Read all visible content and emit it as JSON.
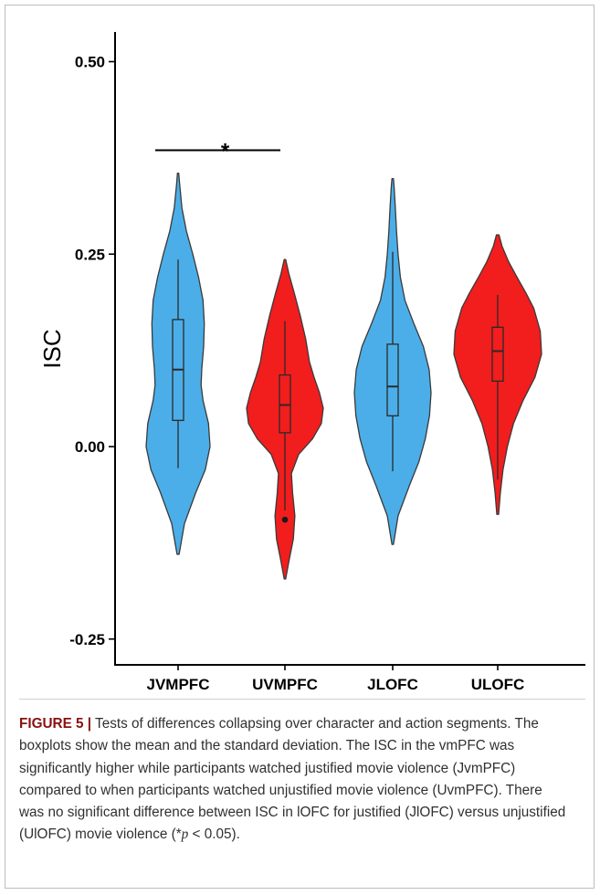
{
  "chart_data": {
    "type": "violin",
    "xlabel": "",
    "ylabel": "ISC",
    "ylim": [
      -0.28,
      0.53
    ],
    "yticks": [
      -0.25,
      0.0,
      0.25,
      0.5
    ],
    "ytick_labels": [
      "-0.25",
      "0.00",
      "0.25",
      "0.50"
    ],
    "categories": [
      "JVMPFC",
      "UVMPFC",
      "JLOFC",
      "ULOFC"
    ],
    "colors": [
      "#4baee8",
      "#f21d1d",
      "#4baee8",
      "#f21d1d"
    ],
    "grid": false,
    "groups": [
      {
        "category": "JVMPFC",
        "min": -0.14,
        "max": 0.355,
        "whisker_low": -0.028,
        "q1": 0.034,
        "median": 0.1,
        "q3": 0.165,
        "whisker_high": 0.243,
        "outliers": [],
        "density": [
          [
            -0.14,
            0.03
          ],
          [
            -0.1,
            0.2
          ],
          [
            -0.06,
            0.55
          ],
          [
            -0.03,
            0.85
          ],
          [
            0.0,
            1.0
          ],
          [
            0.03,
            0.95
          ],
          [
            0.06,
            0.78
          ],
          [
            0.08,
            0.72
          ],
          [
            0.1,
            0.74
          ],
          [
            0.13,
            0.8
          ],
          [
            0.16,
            0.82
          ],
          [
            0.19,
            0.78
          ],
          [
            0.22,
            0.64
          ],
          [
            0.25,
            0.46
          ],
          [
            0.28,
            0.26
          ],
          [
            0.31,
            0.12
          ],
          [
            0.34,
            0.05
          ],
          [
            0.355,
            0.02
          ]
        ]
      },
      {
        "category": "UVMPFC",
        "min": -0.172,
        "max": 0.243,
        "whisker_low": -0.083,
        "q1": 0.018,
        "median": 0.054,
        "q3": 0.093,
        "whisker_high": 0.163,
        "outliers": [
          -0.095
        ],
        "density": [
          [
            -0.172,
            0.02
          ],
          [
            -0.15,
            0.1
          ],
          [
            -0.12,
            0.22
          ],
          [
            -0.09,
            0.26
          ],
          [
            -0.06,
            0.2
          ],
          [
            -0.035,
            0.17
          ],
          [
            -0.01,
            0.36
          ],
          [
            0.01,
            0.72
          ],
          [
            0.03,
            0.95
          ],
          [
            0.05,
            1.0
          ],
          [
            0.07,
            0.9
          ],
          [
            0.09,
            0.76
          ],
          [
            0.11,
            0.64
          ],
          [
            0.14,
            0.54
          ],
          [
            0.17,
            0.4
          ],
          [
            0.2,
            0.24
          ],
          [
            0.225,
            0.1
          ],
          [
            0.243,
            0.02
          ]
        ]
      },
      {
        "category": "JLOFC",
        "min": -0.127,
        "max": 0.348,
        "whisker_low": -0.032,
        "q1": 0.04,
        "median": 0.078,
        "q3": 0.133,
        "whisker_high": 0.253,
        "outliers": [],
        "density": [
          [
            -0.127,
            0.02
          ],
          [
            -0.09,
            0.14
          ],
          [
            -0.05,
            0.44
          ],
          [
            -0.02,
            0.68
          ],
          [
            0.01,
            0.85
          ],
          [
            0.04,
            0.96
          ],
          [
            0.07,
            1.0
          ],
          [
            0.1,
            0.95
          ],
          [
            0.13,
            0.8
          ],
          [
            0.16,
            0.55
          ],
          [
            0.19,
            0.32
          ],
          [
            0.22,
            0.2
          ],
          [
            0.25,
            0.14
          ],
          [
            0.28,
            0.1
          ],
          [
            0.31,
            0.07
          ],
          [
            0.335,
            0.04
          ],
          [
            0.348,
            0.02
          ]
        ]
      },
      {
        "category": "ULOFC",
        "min": -0.088,
        "max": 0.275,
        "whisker_low": -0.043,
        "q1": 0.085,
        "median": 0.124,
        "q3": 0.155,
        "whisker_high": 0.197,
        "outliers": [],
        "density": [
          [
            -0.088,
            0.02
          ],
          [
            -0.06,
            0.06
          ],
          [
            -0.03,
            0.12
          ],
          [
            0.0,
            0.22
          ],
          [
            0.03,
            0.36
          ],
          [
            0.06,
            0.58
          ],
          [
            0.09,
            0.85
          ],
          [
            0.12,
            1.0
          ],
          [
            0.15,
            0.97
          ],
          [
            0.18,
            0.82
          ],
          [
            0.2,
            0.64
          ],
          [
            0.22,
            0.44
          ],
          [
            0.24,
            0.25
          ],
          [
            0.26,
            0.1
          ],
          [
            0.275,
            0.03
          ]
        ]
      }
    ],
    "annotation": {
      "text": "*",
      "from": "JVMPFC",
      "to": "UVMPFC",
      "y": 0.385
    }
  },
  "caption": {
    "label": "FIGURE 5 |",
    "text_pre": " Tests of differences collapsing over character and action segments. The boxplots show the mean and the standard deviation. The ISC in the vmPFC was significantly higher while participants watched justified movie violence (JvmPFC) compared to when participants watched unjustified movie violence (UvmPFC). There was no significant difference between ISC in lOFC for justified (JlOFC) versus unjustified (UlOFC) movie violence (*",
    "p_symbol": "p",
    "text_post": " < 0.05)."
  }
}
